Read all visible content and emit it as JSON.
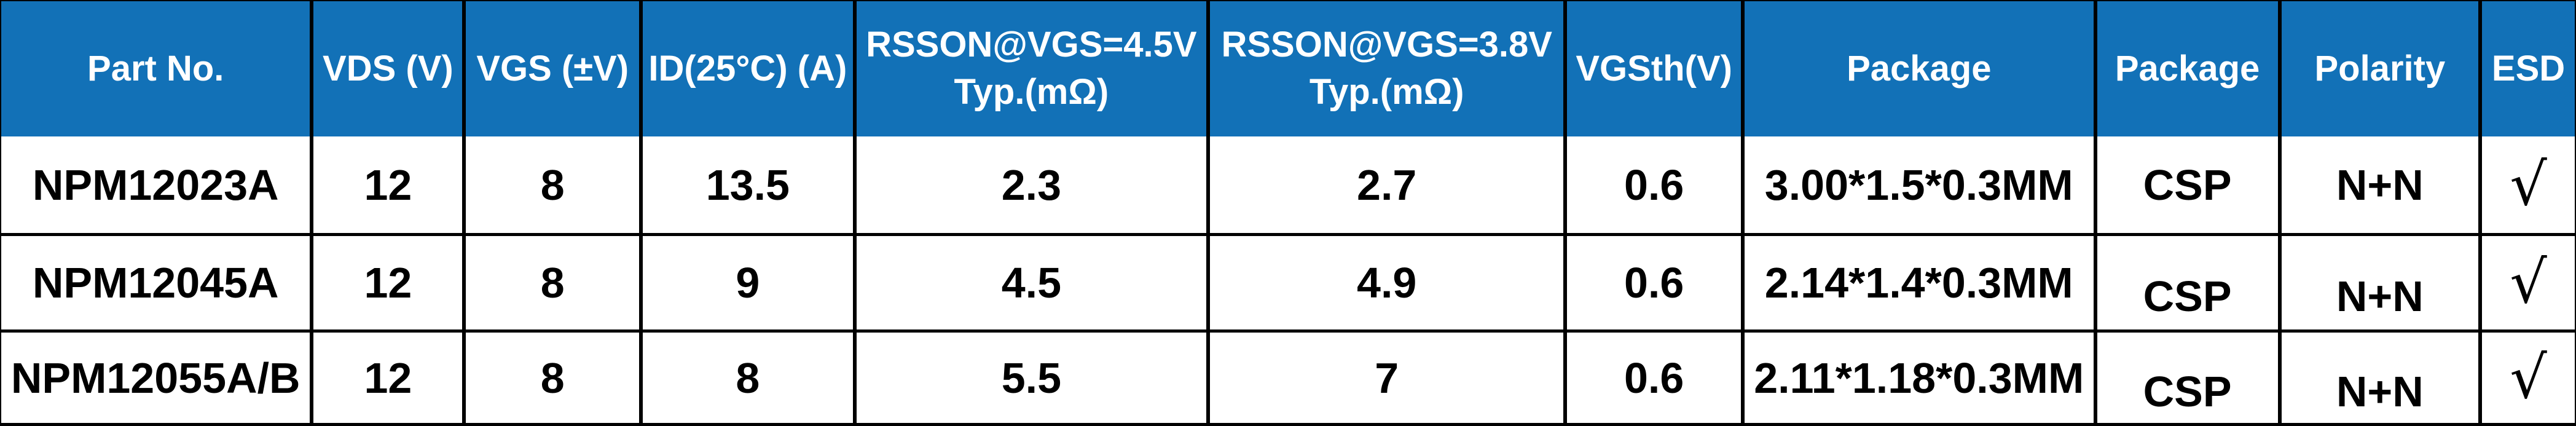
{
  "colors": {
    "header_bg": "#1271B7",
    "header_text": "#FFFFFF",
    "body_text": "#000000",
    "border": "#000000"
  },
  "table": {
    "columns": [
      {
        "label": "Part No."
      },
      {
        "label": "VDS (V)"
      },
      {
        "label": "VGS (±V)"
      },
      {
        "label": "ID(25°C) (A)"
      },
      {
        "label": "RSSON@VGS=4.5V Typ.(mΩ)"
      },
      {
        "label": "RSSON@VGS=3.8V Typ.(mΩ)"
      },
      {
        "label": "VGSth(V)"
      },
      {
        "label": "Package"
      },
      {
        "label": "Package"
      },
      {
        "label": "Polarity"
      },
      {
        "label": "ESD"
      }
    ],
    "rows": [
      {
        "cells": [
          "NPM12023A",
          "12",
          "8",
          "13.5",
          "2.3",
          "2.7",
          "0.6",
          "3.00*1.5*0.3MM",
          "CSP",
          "N+N",
          "√"
        ]
      },
      {
        "cells": [
          "NPM12045A",
          "12",
          "8",
          "9",
          "4.5",
          "4.9",
          "0.6",
          "2.14*1.4*0.3MM",
          "CSP",
          "N+N",
          "√"
        ]
      },
      {
        "cells": [
          "NPM12055A/B",
          "12",
          "8",
          "8",
          "5.5",
          "7",
          "0.6",
          "2.11*1.18*0.3MM",
          "CSP",
          "N+N",
          "√"
        ]
      }
    ]
  }
}
